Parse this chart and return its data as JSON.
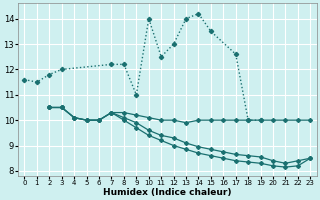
{
  "xlabel": "Humidex (Indice chaleur)",
  "bg_color": "#cff0f0",
  "grid_color": "#ffffff",
  "line_color": "#1a7070",
  "xlim": [
    -0.5,
    23.5
  ],
  "ylim": [
    7.8,
    14.6
  ],
  "yticks": [
    8,
    9,
    10,
    11,
    12,
    13,
    14
  ],
  "xticks": [
    0,
    1,
    2,
    3,
    4,
    5,
    6,
    7,
    8,
    9,
    10,
    11,
    12,
    13,
    14,
    15,
    16,
    17,
    18,
    19,
    20,
    21,
    22,
    23
  ],
  "curve_main": {
    "x": [
      0,
      1,
      2,
      3,
      7,
      8,
      9,
      10,
      11,
      12,
      13,
      14,
      15,
      17,
      18,
      19
    ],
    "y": [
      11.6,
      11.5,
      11.8,
      12.0,
      12.2,
      12.2,
      11.0,
      14.0,
      12.5,
      13.0,
      14.0,
      14.2,
      13.5,
      12.6,
      10.0,
      10.0
    ]
  },
  "curve_flat1": {
    "x": [
      2,
      3,
      4,
      5,
      6,
      7,
      8,
      9,
      10,
      11,
      12,
      13,
      14,
      15,
      16,
      17,
      18,
      19,
      20,
      21,
      22,
      23
    ],
    "y": [
      10.5,
      10.5,
      10.1,
      10.0,
      10.0,
      10.3,
      10.3,
      10.2,
      10.1,
      10.0,
      10.0,
      9.9,
      10.0,
      10.0,
      10.0,
      10.0,
      10.0,
      10.0,
      10.0,
      10.0,
      10.0,
      10.0
    ]
  },
  "curve_flat2": {
    "x": [
      2,
      3,
      4,
      5,
      6,
      7,
      8,
      9,
      10,
      11,
      12,
      13,
      14,
      15,
      16,
      17,
      18,
      19,
      20,
      21,
      22,
      23
    ],
    "y": [
      10.5,
      10.5,
      10.1,
      10.0,
      10.0,
      10.3,
      10.1,
      9.9,
      9.6,
      9.4,
      9.3,
      9.1,
      8.95,
      8.85,
      8.75,
      8.65,
      8.6,
      8.55,
      8.4,
      8.3,
      8.4,
      8.5
    ]
  },
  "curve_flat3": {
    "x": [
      2,
      3,
      4,
      5,
      6,
      7,
      8,
      9,
      10,
      11,
      12,
      13,
      14,
      15,
      16,
      17,
      18,
      19,
      20,
      21,
      22,
      23
    ],
    "y": [
      10.5,
      10.5,
      10.1,
      10.0,
      10.0,
      10.3,
      10.0,
      9.7,
      9.4,
      9.2,
      9.0,
      8.85,
      8.7,
      8.6,
      8.5,
      8.4,
      8.35,
      8.3,
      8.2,
      8.15,
      8.2,
      8.5
    ]
  }
}
